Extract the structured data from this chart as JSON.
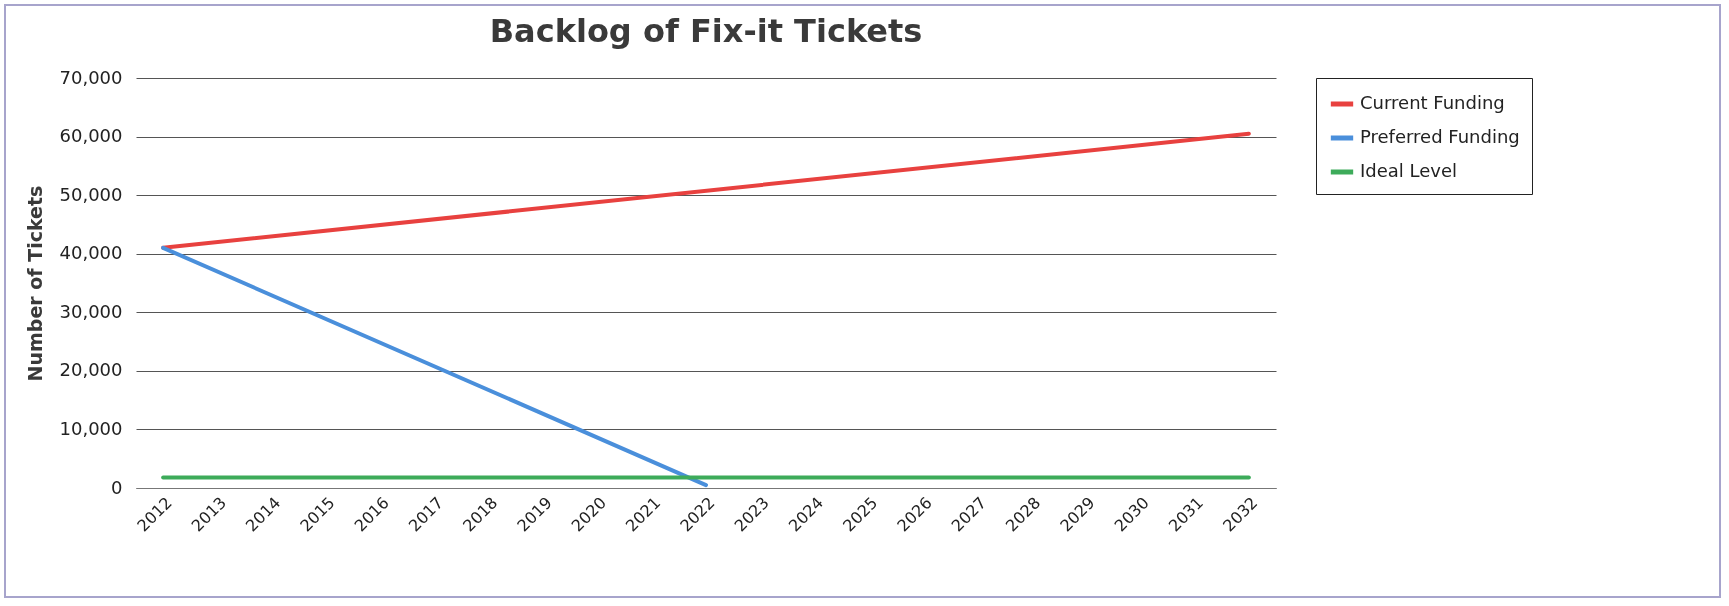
{
  "chart_data": {
    "type": "line",
    "title": "Backlog of Fix-it Tickets",
    "ylabel": "Number of Tickets",
    "xlim": [
      2011.5,
      2032.5
    ],
    "xticks": [
      2012,
      2013,
      2014,
      2015,
      2016,
      2017,
      2018,
      2019,
      2020,
      2021,
      2022,
      2023,
      2024,
      2025,
      2026,
      2027,
      2028,
      2029,
      2030,
      2031,
      2032
    ],
    "ylim": [
      0,
      70000
    ],
    "yticks": [
      0,
      {
        "value": 10000,
        "label": "10,000"
      },
      {
        "value": 20000,
        "label": "20,000"
      },
      {
        "value": 30000,
        "label": "30,000"
      },
      {
        "value": 40000,
        "label": "40,000"
      },
      {
        "value": 50000,
        "label": "50,000"
      },
      {
        "value": 60000,
        "label": "60,000"
      },
      {
        "value": 70000,
        "label": "70,000"
      }
    ],
    "grid": "y",
    "legend": "right",
    "series": [
      {
        "name": "Current Funding",
        "color": "#e8413f",
        "x": [
          2012,
          2032
        ],
        "values": [
          41000,
          60500
        ]
      },
      {
        "name": "Preferred Funding",
        "color": "#4a8fdb",
        "x": [
          2012,
          2022
        ],
        "values": [
          41000,
          500
        ]
      },
      {
        "name": "Ideal Level",
        "color": "#3dab5a",
        "x": [
          2012,
          2032
        ],
        "values": [
          1800,
          1800
        ]
      }
    ]
  }
}
